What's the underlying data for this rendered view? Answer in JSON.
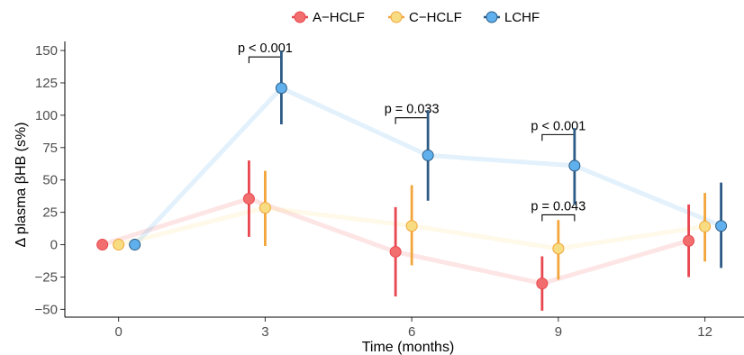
{
  "chart_data": {
    "type": "line",
    "xlabel": "Time (months)",
    "ylabel": "Δ plasma βHB (s%)",
    "x_ticks": [
      "0",
      "3",
      "6",
      "9",
      "12"
    ],
    "y_ticks": [
      "150",
      "125",
      "100",
      "75",
      "50",
      "25",
      "0",
      "−25",
      "−50"
    ],
    "xlim": [
      -1.1,
      12.8
    ],
    "ylim": [
      -56,
      157
    ],
    "x": [
      0,
      3,
      6,
      9,
      12
    ],
    "legend_position": "top",
    "series": [
      {
        "name": "A−HCLF",
        "color": "#e8474f",
        "fill": "#f26d6d",
        "values": [
          0,
          35.5,
          -5.5,
          -30,
          3
        ],
        "lower": [
          0,
          6,
          -40,
          -51,
          -25
        ],
        "upper": [
          0,
          65,
          29,
          -9,
          31
        ]
      },
      {
        "name": "C−HCLF",
        "color": "#f2a53a",
        "fill": "#f7dc82",
        "values": [
          0,
          28.5,
          14.5,
          -3,
          14
        ],
        "lower": [
          0,
          -1,
          -16,
          -27,
          -13
        ],
        "upper": [
          0,
          57,
          46,
          19,
          40
        ]
      },
      {
        "name": "LCHF",
        "color": "#2d5b85",
        "fill": "#5fb0ec",
        "values": [
          0,
          121,
          69,
          61,
          14.5
        ],
        "lower": [
          0,
          93,
          34,
          31,
          -18
        ],
        "upper": [
          0,
          150,
          104,
          90,
          48
        ]
      }
    ],
    "annotations": [
      {
        "text": "p < 0.001",
        "x": 3,
        "y": 152
      },
      {
        "text": "p = 0.033",
        "x": 6,
        "y": 105
      },
      {
        "text": "p < 0.001",
        "x": 9,
        "y": 92
      },
      {
        "text": "p = 0.043",
        "x": 9,
        "y": 30
      }
    ]
  }
}
